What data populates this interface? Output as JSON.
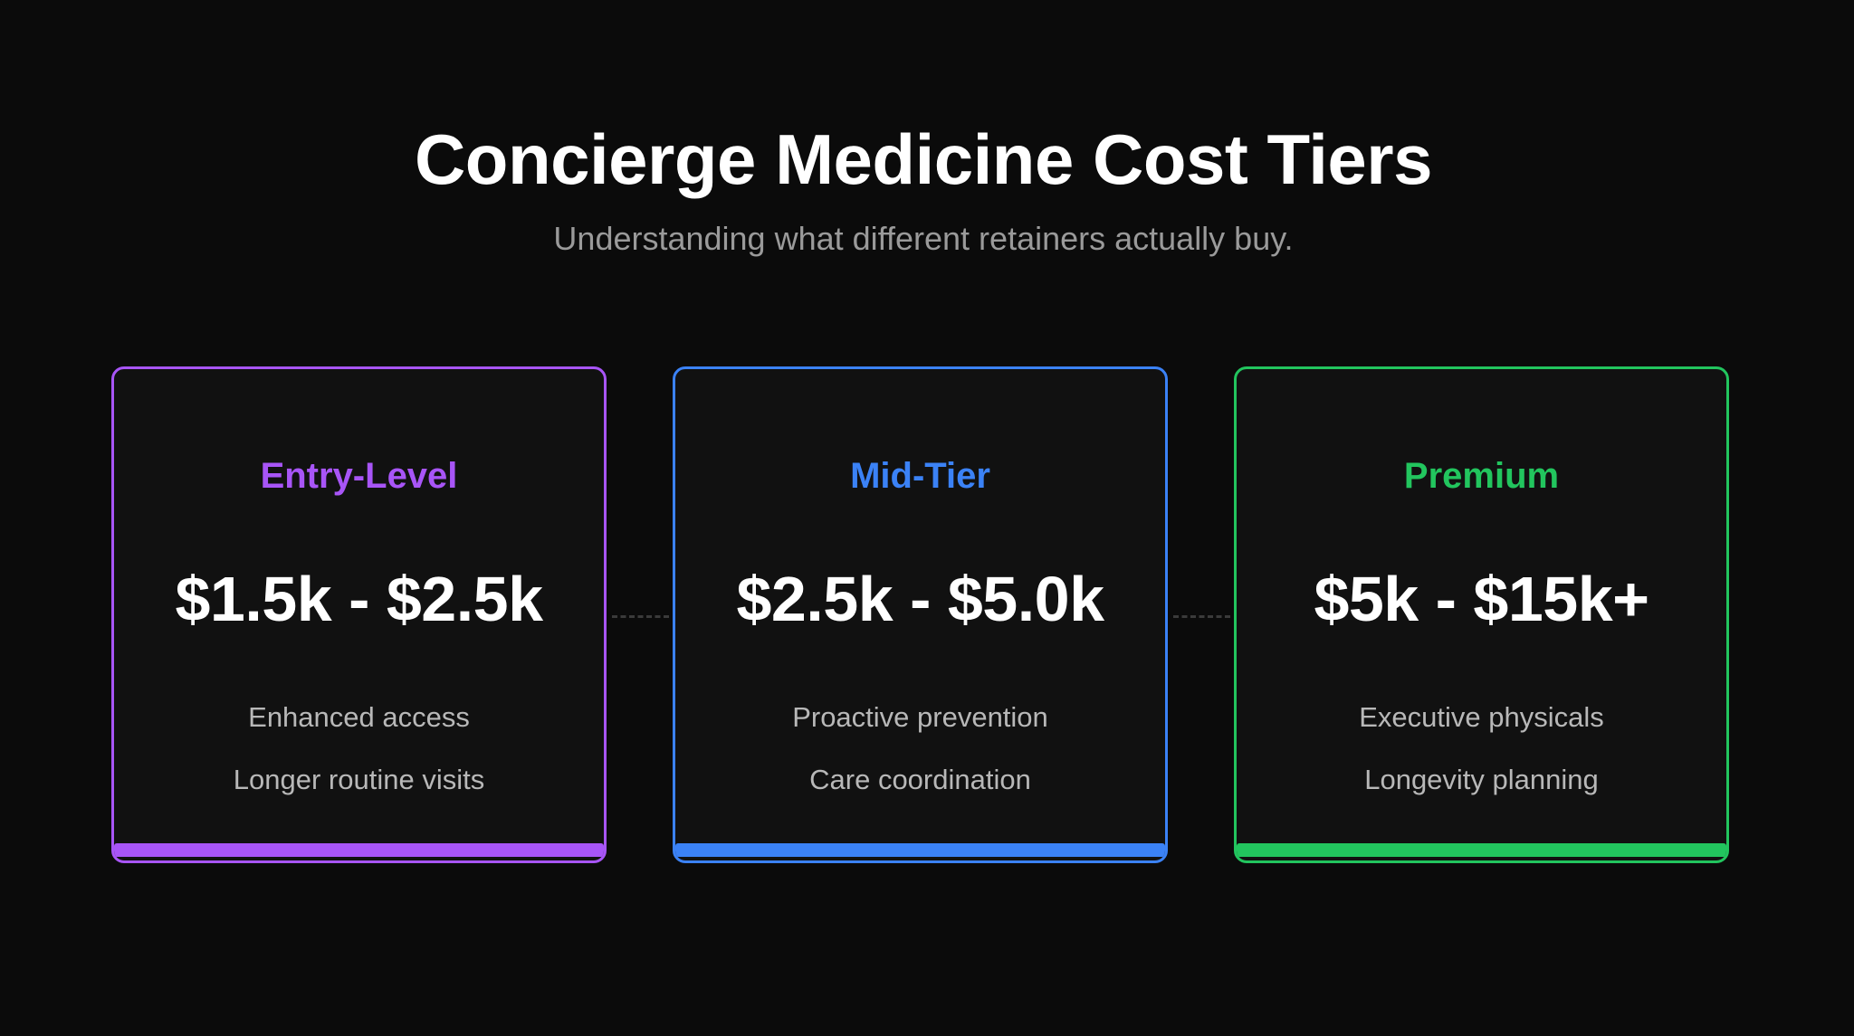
{
  "header": {
    "title": "Concierge Medicine Cost Tiers",
    "subtitle": "Understanding what different retainers actually buy."
  },
  "tiers": [
    {
      "name": "Entry-Level",
      "price": "$1.5k - $2.5k",
      "features": [
        "Enhanced access",
        "Longer routine visits"
      ],
      "color": "#a855f7"
    },
    {
      "name": "Mid-Tier",
      "price": "$2.5k - $5.0k",
      "features": [
        "Proactive prevention",
        "Care coordination"
      ],
      "color": "#3b82f6"
    },
    {
      "name": "Premium",
      "price": "$5k - $15k+",
      "features": [
        "Executive physicals",
        "Longevity planning"
      ],
      "color": "#22c55e"
    }
  ],
  "colors": {
    "background": "#0b0b0b",
    "card_background": "#111111",
    "connector": "#3a3a3a"
  }
}
